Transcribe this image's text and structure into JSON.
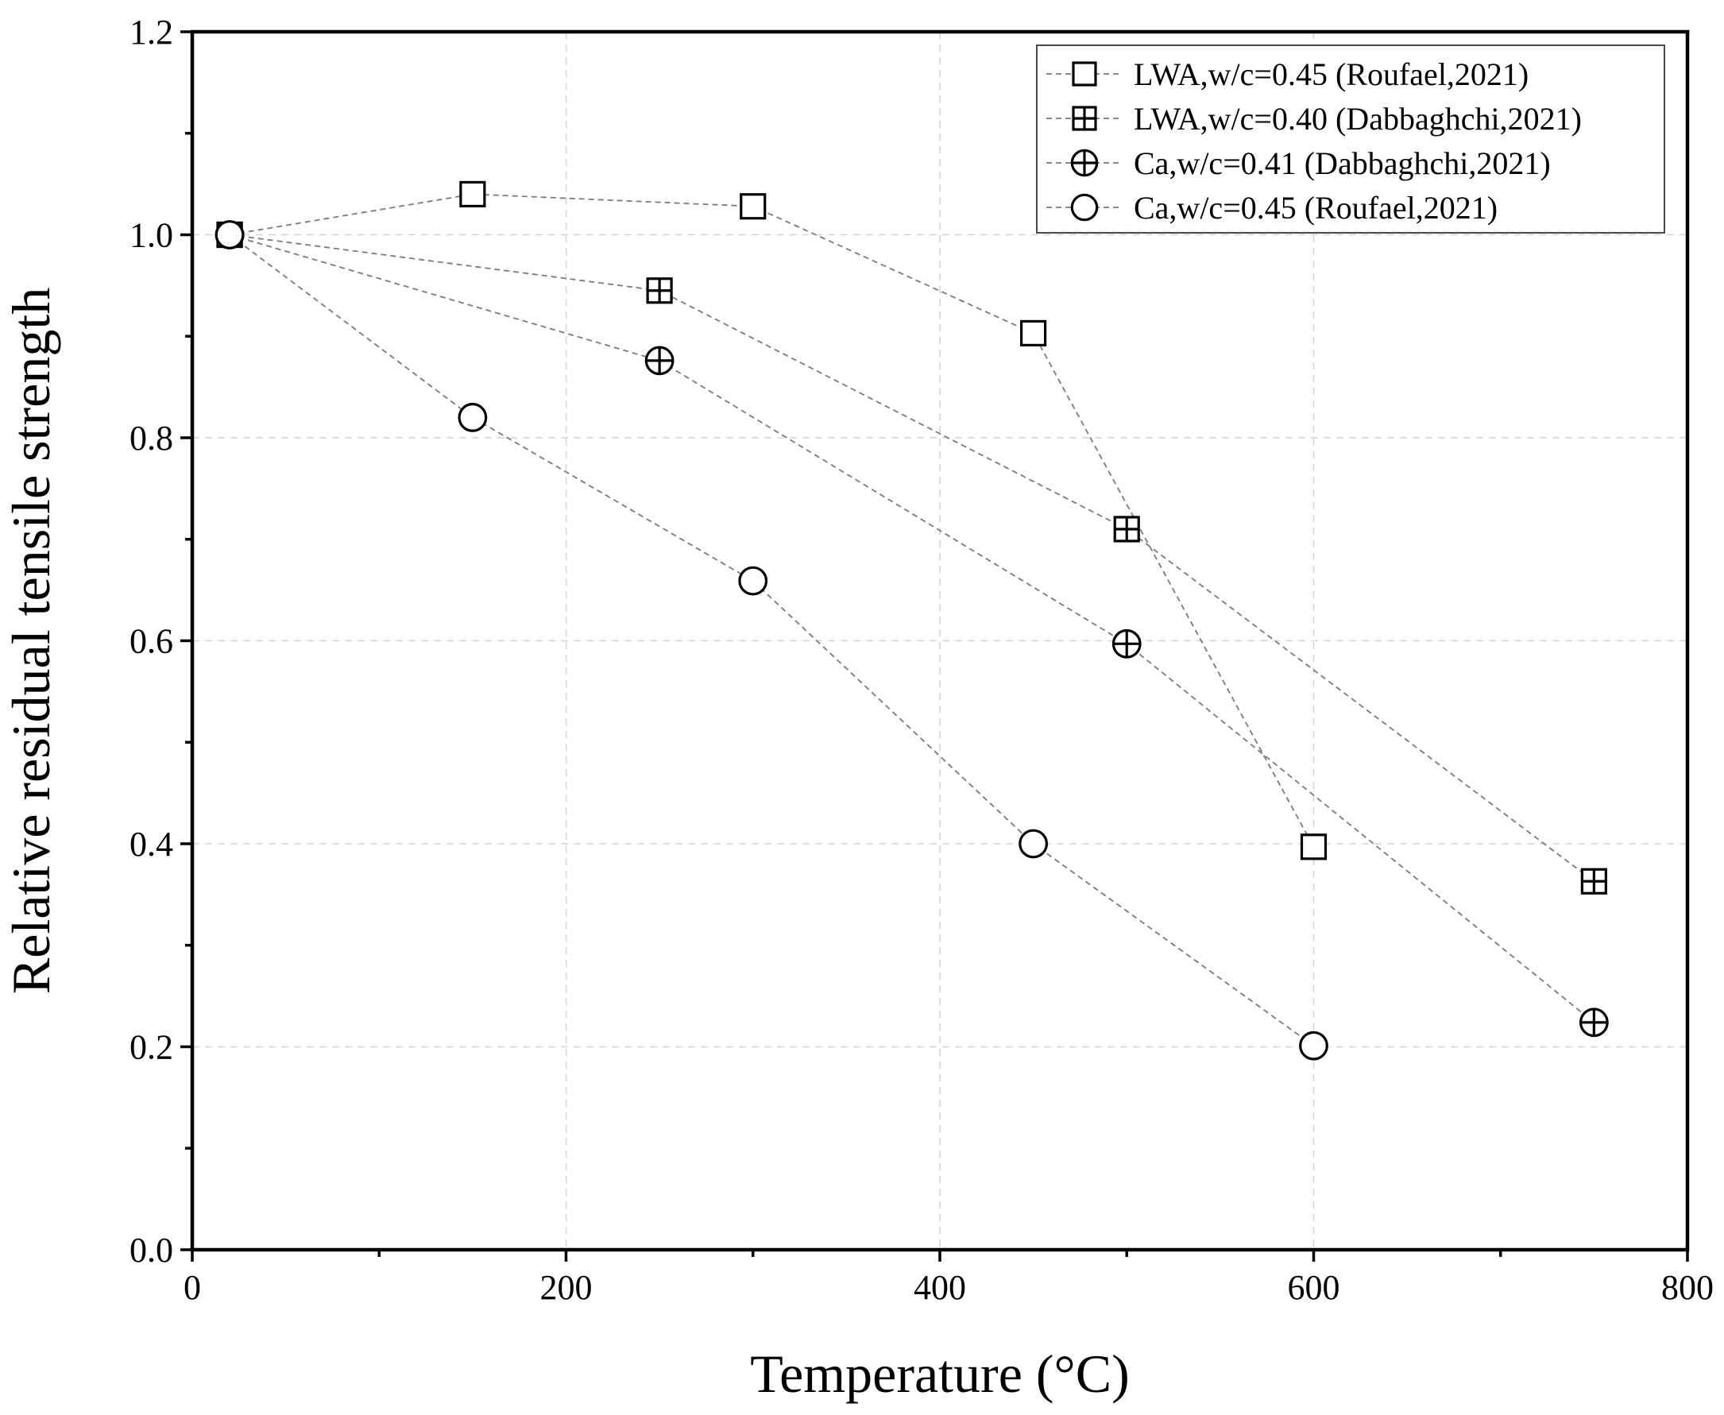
{
  "chart_data": {
    "type": "scatter",
    "title": "",
    "xlabel": "Temperature (°C)",
    "ylabel": "Relative residual tensile strength",
    "xlim": [
      0,
      800
    ],
    "ylim": [
      0.0,
      1.2
    ],
    "x_ticks": [
      0,
      200,
      400,
      600,
      800
    ],
    "x_tick_labels": [
      "0",
      "200",
      "400",
      "600",
      "800"
    ],
    "x_minor_ticks": [
      100,
      300,
      500,
      700
    ],
    "y_ticks": [
      0.0,
      0.2,
      0.4,
      0.6,
      0.8,
      1.0,
      1.2
    ],
    "y_tick_labels": [
      "0.0",
      "0.2",
      "0.4",
      "0.6",
      "0.8",
      "1.0",
      "1.2"
    ],
    "y_minor_ticks": [
      0.1,
      0.3,
      0.5,
      0.7,
      0.9,
      1.1
    ],
    "grid": true,
    "legend_position": "top-right",
    "series": [
      {
        "name": "LWA,w/c=0.45 (Roufael,2021)",
        "marker": "square",
        "x": [
          20,
          150,
          300,
          450,
          600
        ],
        "y": [
          1.0,
          1.04,
          1.028,
          0.903,
          0.397
        ]
      },
      {
        "name": "LWA,w/c=0.40 (Dabbaghchi,2021)",
        "marker": "square-plus",
        "x": [
          20,
          250,
          500,
          750
        ],
        "y": [
          1.0,
          0.945,
          0.71,
          0.363
        ]
      },
      {
        "name": "Ca,w/c=0.41 (Dabbaghchi,2021)",
        "marker": "circle-plus",
        "x": [
          20,
          250,
          500,
          750
        ],
        "y": [
          1.0,
          0.876,
          0.597,
          0.224
        ]
      },
      {
        "name": "Ca,w/c=0.45 (Roufael,2021)",
        "marker": "circle",
        "x": [
          20,
          150,
          300,
          450,
          600
        ],
        "y": [
          1.0,
          0.82,
          0.659,
          0.4,
          0.201
        ]
      }
    ]
  }
}
